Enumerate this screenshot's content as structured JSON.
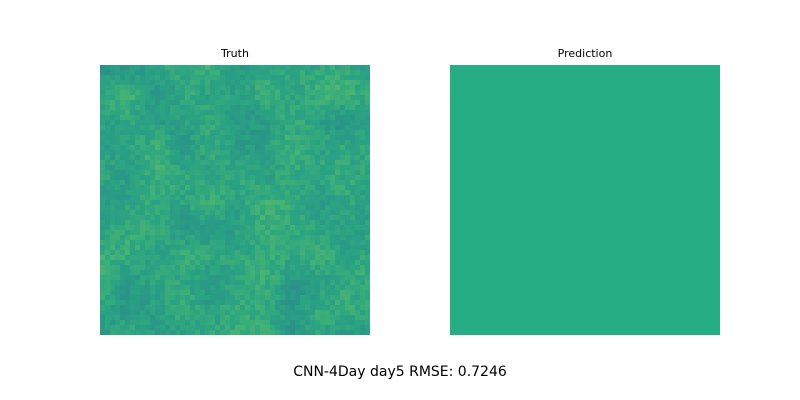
{
  "figure": {
    "caption": "CNN-4Day day5 RMSE: 0.7246"
  },
  "chart_data": [
    {
      "type": "heatmap",
      "title": "Truth",
      "colormap": "viridis",
      "axes_visible": false,
      "grid_size": [
        54,
        54
      ],
      "dominant_color": "#2aa383",
      "texture": "noisy field",
      "color_range": [
        "#2a7b8e",
        "#6fcc5a"
      ]
    },
    {
      "type": "heatmap",
      "title": "Prediction",
      "colormap": "viridis",
      "axes_visible": false,
      "grid_size": [
        54,
        54
      ],
      "dominant_color": "#26ad84",
      "texture": "nearly uniform",
      "color_range": [
        "#24a984",
        "#2bb07f"
      ]
    }
  ]
}
